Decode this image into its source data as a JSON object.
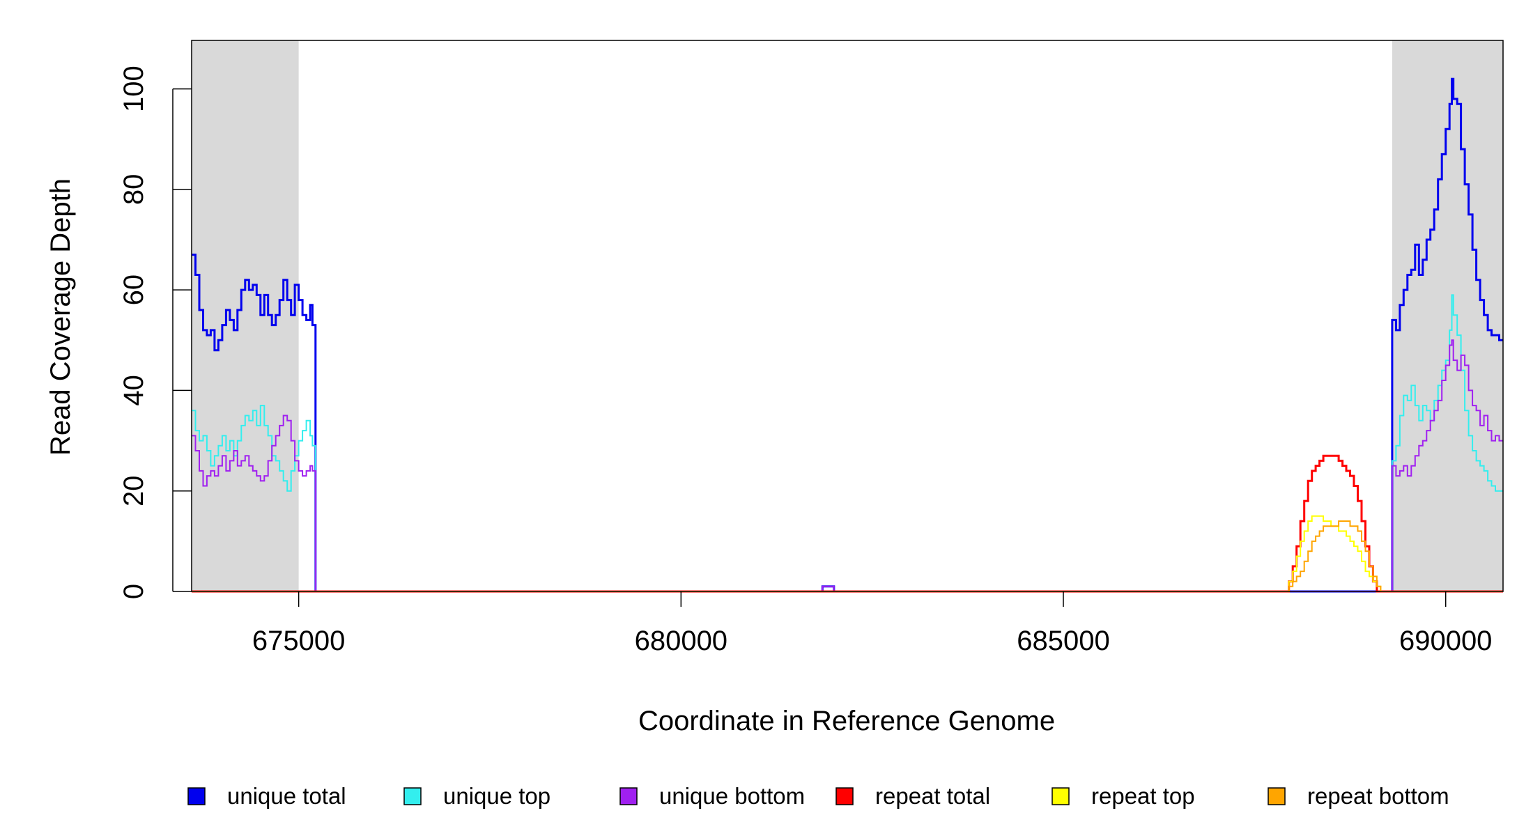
{
  "chart_data": {
    "type": "line",
    "xlabel": "Coordinate in Reference Genome",
    "ylabel": "Read Coverage Depth",
    "xlim": [
      673600,
      690750
    ],
    "ylim": [
      0,
      108
    ],
    "x_ticks": [
      675000,
      680000,
      685000,
      690000
    ],
    "y_ticks": [
      0,
      20,
      40,
      60,
      80,
      100
    ],
    "x_tick_labels": [
      "675000",
      "680000",
      "685000",
      "690000"
    ],
    "y_tick_labels": [
      "0",
      "20",
      "40",
      "60",
      "80",
      "100"
    ],
    "shaded_regions": [
      {
        "x0": 673600,
        "x1": 675000,
        "color": "#d9d9d9"
      },
      {
        "x0": 689300,
        "x1": 690750,
        "color": "#d9d9d9"
      }
    ],
    "grid": false,
    "legend_position": "bottom",
    "series": [
      {
        "name": "unique total",
        "color": "#0000ee",
        "stroke": 3,
        "points": [
          [
            673600,
            67
          ],
          [
            673650,
            63
          ],
          [
            673700,
            56
          ],
          [
            673750,
            52
          ],
          [
            673800,
            51
          ],
          [
            673850,
            52
          ],
          [
            673900,
            48
          ],
          [
            673950,
            50
          ],
          [
            674000,
            53
          ],
          [
            674050,
            56
          ],
          [
            674100,
            54
          ],
          [
            674150,
            52
          ],
          [
            674200,
            56
          ],
          [
            674250,
            60
          ],
          [
            674300,
            62
          ],
          [
            674350,
            60
          ],
          [
            674400,
            61
          ],
          [
            674450,
            59
          ],
          [
            674500,
            55
          ],
          [
            674550,
            59
          ],
          [
            674600,
            55
          ],
          [
            674650,
            53
          ],
          [
            674700,
            55
          ],
          [
            674750,
            58
          ],
          [
            674800,
            62
          ],
          [
            674850,
            58
          ],
          [
            674900,
            55
          ],
          [
            674950,
            61
          ],
          [
            675000,
            58
          ],
          [
            675050,
            55
          ],
          [
            675100,
            54
          ],
          [
            675150,
            57
          ],
          [
            675180,
            53
          ],
          [
            675220,
            0
          ],
          [
            681850,
            0
          ],
          [
            681850,
            1
          ],
          [
            682000,
            1
          ],
          [
            682000,
            0
          ],
          [
            689300,
            0
          ],
          [
            689300,
            54
          ],
          [
            689350,
            52
          ],
          [
            689400,
            57
          ],
          [
            689450,
            60
          ],
          [
            689500,
            63
          ],
          [
            689550,
            64
          ],
          [
            689600,
            69
          ],
          [
            689650,
            63
          ],
          [
            689700,
            66
          ],
          [
            689750,
            70
          ],
          [
            689800,
            72
          ],
          [
            689850,
            76
          ],
          [
            689900,
            82
          ],
          [
            689950,
            87
          ],
          [
            690000,
            92
          ],
          [
            690050,
            97
          ],
          [
            690080,
            102
          ],
          [
            690100,
            98
          ],
          [
            690150,
            97
          ],
          [
            690200,
            88
          ],
          [
            690250,
            81
          ],
          [
            690300,
            75
          ],
          [
            690350,
            68
          ],
          [
            690400,
            62
          ],
          [
            690450,
            58
          ],
          [
            690500,
            55
          ],
          [
            690550,
            52
          ],
          [
            690600,
            51
          ],
          [
            690700,
            50
          ],
          [
            690750,
            50
          ]
        ]
      },
      {
        "name": "unique top",
        "color": "#33eeee",
        "stroke": 2,
        "points": [
          [
            673600,
            36
          ],
          [
            673650,
            32
          ],
          [
            673700,
            30
          ],
          [
            673750,
            31
          ],
          [
            673800,
            28
          ],
          [
            673850,
            25
          ],
          [
            673900,
            27
          ],
          [
            673950,
            29
          ],
          [
            674000,
            31
          ],
          [
            674050,
            28
          ],
          [
            674100,
            30
          ],
          [
            674150,
            27
          ],
          [
            674200,
            30
          ],
          [
            674250,
            33
          ],
          [
            674300,
            35
          ],
          [
            674350,
            34
          ],
          [
            674400,
            36
          ],
          [
            674450,
            33
          ],
          [
            674500,
            37
          ],
          [
            674550,
            33
          ],
          [
            674600,
            31
          ],
          [
            674650,
            27
          ],
          [
            674700,
            26
          ],
          [
            674750,
            24
          ],
          [
            674800,
            22
          ],
          [
            674850,
            20
          ],
          [
            674900,
            24
          ],
          [
            674950,
            27
          ],
          [
            675000,
            30
          ],
          [
            675050,
            32
          ],
          [
            675100,
            34
          ],
          [
            675150,
            31
          ],
          [
            675180,
            29
          ],
          [
            675220,
            0
          ],
          [
            689300,
            0
          ],
          [
            689300,
            26
          ],
          [
            689350,
            29
          ],
          [
            689400,
            35
          ],
          [
            689450,
            39
          ],
          [
            689500,
            38
          ],
          [
            689550,
            41
          ],
          [
            689600,
            37
          ],
          [
            689650,
            34
          ],
          [
            689700,
            37
          ],
          [
            689750,
            36
          ],
          [
            689800,
            34
          ],
          [
            689850,
            38
          ],
          [
            689900,
            41
          ],
          [
            689950,
            44
          ],
          [
            690000,
            46
          ],
          [
            690050,
            52
          ],
          [
            690080,
            59
          ],
          [
            690100,
            55
          ],
          [
            690150,
            51
          ],
          [
            690200,
            44
          ],
          [
            690250,
            36
          ],
          [
            690300,
            31
          ],
          [
            690350,
            28
          ],
          [
            690400,
            26
          ],
          [
            690450,
            25
          ],
          [
            690500,
            24
          ],
          [
            690550,
            22
          ],
          [
            690600,
            21
          ],
          [
            690650,
            20
          ],
          [
            690700,
            20
          ],
          [
            690750,
            20
          ]
        ]
      },
      {
        "name": "unique bottom",
        "color": "#a020f0",
        "stroke": 2,
        "points": [
          [
            673600,
            31
          ],
          [
            673650,
            28
          ],
          [
            673700,
            24
          ],
          [
            673750,
            21
          ],
          [
            673800,
            23
          ],
          [
            673850,
            24
          ],
          [
            673900,
            23
          ],
          [
            673950,
            25
          ],
          [
            674000,
            27
          ],
          [
            674050,
            24
          ],
          [
            674100,
            26
          ],
          [
            674150,
            28
          ],
          [
            674200,
            25
          ],
          [
            674250,
            26
          ],
          [
            674300,
            27
          ],
          [
            674350,
            25
          ],
          [
            674400,
            24
          ],
          [
            674450,
            23
          ],
          [
            674500,
            22
          ],
          [
            674550,
            23
          ],
          [
            674600,
            26
          ],
          [
            674650,
            29
          ],
          [
            674700,
            31
          ],
          [
            674750,
            33
          ],
          [
            674800,
            35
          ],
          [
            674850,
            34
          ],
          [
            674900,
            30
          ],
          [
            674950,
            26
          ],
          [
            675000,
            24
          ],
          [
            675050,
            23
          ],
          [
            675100,
            24
          ],
          [
            675150,
            25
          ],
          [
            675180,
            24
          ],
          [
            675220,
            0
          ],
          [
            681850,
            0
          ],
          [
            681850,
            1
          ],
          [
            682000,
            1
          ],
          [
            682000,
            0
          ],
          [
            689300,
            0
          ],
          [
            689300,
            25
          ],
          [
            689350,
            23
          ],
          [
            689400,
            24
          ],
          [
            689450,
            25
          ],
          [
            689500,
            23
          ],
          [
            689550,
            25
          ],
          [
            689600,
            27
          ],
          [
            689650,
            29
          ],
          [
            689700,
            30
          ],
          [
            689750,
            32
          ],
          [
            689800,
            34
          ],
          [
            689850,
            36
          ],
          [
            689900,
            38
          ],
          [
            689950,
            42
          ],
          [
            690000,
            45
          ],
          [
            690050,
            49
          ],
          [
            690080,
            50
          ],
          [
            690100,
            46
          ],
          [
            690150,
            44
          ],
          [
            690200,
            47
          ],
          [
            690250,
            45
          ],
          [
            690300,
            40
          ],
          [
            690350,
            37
          ],
          [
            690400,
            36
          ],
          [
            690450,
            33
          ],
          [
            690500,
            35
          ],
          [
            690550,
            32
          ],
          [
            690600,
            30
          ],
          [
            690650,
            31
          ],
          [
            690700,
            30
          ],
          [
            690750,
            30
          ]
        ]
      },
      {
        "name": "repeat total",
        "color": "#ff0000",
        "stroke": 3,
        "points": [
          [
            673600,
            0
          ],
          [
            687900,
            0
          ],
          [
            687950,
            2
          ],
          [
            688000,
            5
          ],
          [
            688050,
            9
          ],
          [
            688100,
            14
          ],
          [
            688150,
            18
          ],
          [
            688200,
            22
          ],
          [
            688250,
            24
          ],
          [
            688300,
            25
          ],
          [
            688350,
            26
          ],
          [
            688400,
            27
          ],
          [
            688450,
            27
          ],
          [
            688500,
            27
          ],
          [
            688550,
            27
          ],
          [
            688600,
            26
          ],
          [
            688650,
            25
          ],
          [
            688700,
            24
          ],
          [
            688750,
            23
          ],
          [
            688800,
            21
          ],
          [
            688850,
            18
          ],
          [
            688900,
            14
          ],
          [
            688950,
            9
          ],
          [
            689000,
            5
          ],
          [
            689050,
            2
          ],
          [
            689100,
            0
          ],
          [
            690750,
            0
          ]
        ]
      },
      {
        "name": "repeat top",
        "color": "#ffff00",
        "stroke": 2,
        "points": [
          [
            673600,
            0
          ],
          [
            687900,
            0
          ],
          [
            687950,
            2
          ],
          [
            688000,
            4
          ],
          [
            688050,
            7
          ],
          [
            688100,
            10
          ],
          [
            688150,
            12
          ],
          [
            688200,
            14
          ],
          [
            688250,
            15
          ],
          [
            688300,
            15
          ],
          [
            688350,
            15
          ],
          [
            688400,
            14
          ],
          [
            688450,
            14
          ],
          [
            688500,
            13
          ],
          [
            688550,
            13
          ],
          [
            688600,
            12
          ],
          [
            688650,
            12
          ],
          [
            688700,
            11
          ],
          [
            688750,
            10
          ],
          [
            688800,
            9
          ],
          [
            688850,
            8
          ],
          [
            688900,
            6
          ],
          [
            688950,
            4
          ],
          [
            689000,
            3
          ],
          [
            689050,
            2
          ],
          [
            689100,
            1
          ],
          [
            689150,
            0
          ],
          [
            690750,
            0
          ]
        ]
      },
      {
        "name": "repeat bottom",
        "color": "#ffa500",
        "stroke": 2,
        "points": [
          [
            673600,
            0
          ],
          [
            687900,
            0
          ],
          [
            687950,
            1
          ],
          [
            688000,
            2
          ],
          [
            688050,
            3
          ],
          [
            688100,
            4
          ],
          [
            688150,
            6
          ],
          [
            688200,
            8
          ],
          [
            688250,
            10
          ],
          [
            688300,
            11
          ],
          [
            688350,
            12
          ],
          [
            688400,
            13
          ],
          [
            688450,
            13
          ],
          [
            688500,
            13
          ],
          [
            688550,
            13
          ],
          [
            688600,
            14
          ],
          [
            688650,
            14
          ],
          [
            688700,
            14
          ],
          [
            688750,
            13
          ],
          [
            688800,
            13
          ],
          [
            688850,
            12
          ],
          [
            688900,
            10
          ],
          [
            688950,
            8
          ],
          [
            689000,
            5
          ],
          [
            689050,
            3
          ],
          [
            689100,
            1
          ],
          [
            689150,
            0
          ],
          [
            690750,
            0
          ]
        ]
      }
    ]
  }
}
